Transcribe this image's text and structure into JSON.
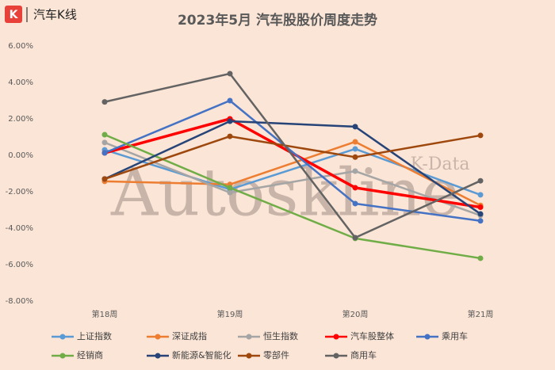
{
  "header": {
    "brand": "汽车K线",
    "logo_letter": "K"
  },
  "watermark": {
    "main": "Autoskline",
    "sub": "K-Data"
  },
  "chart_data": {
    "type": "line",
    "title": "2023年5月 汽车股股价周度走势",
    "categories": [
      "第18周",
      "第19周",
      "第20周",
      "第21周"
    ],
    "ylim": [
      -8,
      6
    ],
    "yticks": [
      {
        "value": -8,
        "label": "-8.00%"
      },
      {
        "value": -6,
        "label": "-6.00%"
      },
      {
        "value": -4,
        "label": "-4.00%"
      },
      {
        "value": -2,
        "label": "-2.00%"
      },
      {
        "value": 0,
        "label": "0.00%"
      },
      {
        "value": 2,
        "label": "2.00%"
      },
      {
        "value": 4,
        "label": "4.00%"
      },
      {
        "value": 6,
        "label": "6.00%"
      }
    ],
    "grid": false,
    "legend": "bottom",
    "series": [
      {
        "name": "上证指数",
        "color": "#5b9bd5",
        "values": [
          0.3,
          -1.87,
          0.35,
          -2.17
        ]
      },
      {
        "name": "深证成指",
        "color": "#ed7d31",
        "values": [
          -1.43,
          -1.6,
          0.74,
          -2.75
        ]
      },
      {
        "name": "恒生指数",
        "color": "#a5a5a5",
        "values": [
          0.7,
          -2.05,
          -0.87,
          -3.3
        ]
      },
      {
        "name": "汽车股整体",
        "color": "#ff0000",
        "values": [
          0.13,
          2.0,
          -1.78,
          -2.85
        ]
      },
      {
        "name": "乘用车",
        "color": "#4472c4",
        "values": [
          0.13,
          3.0,
          -2.65,
          -3.6
        ]
      },
      {
        "name": "经销商",
        "color": "#70ad47",
        "values": [
          1.13,
          -1.78,
          -4.56,
          -5.65
        ]
      },
      {
        "name": "新能源&智能化",
        "color": "#264478",
        "values": [
          -1.3,
          1.87,
          1.57,
          -3.22
        ]
      },
      {
        "name": "零部件",
        "color": "#9e480e",
        "values": [
          -1.3,
          1.04,
          -0.1,
          1.09
        ]
      },
      {
        "name": "商用车",
        "color": "#636363",
        "values": [
          2.93,
          4.48,
          -4.52,
          -1.4
        ]
      }
    ]
  }
}
